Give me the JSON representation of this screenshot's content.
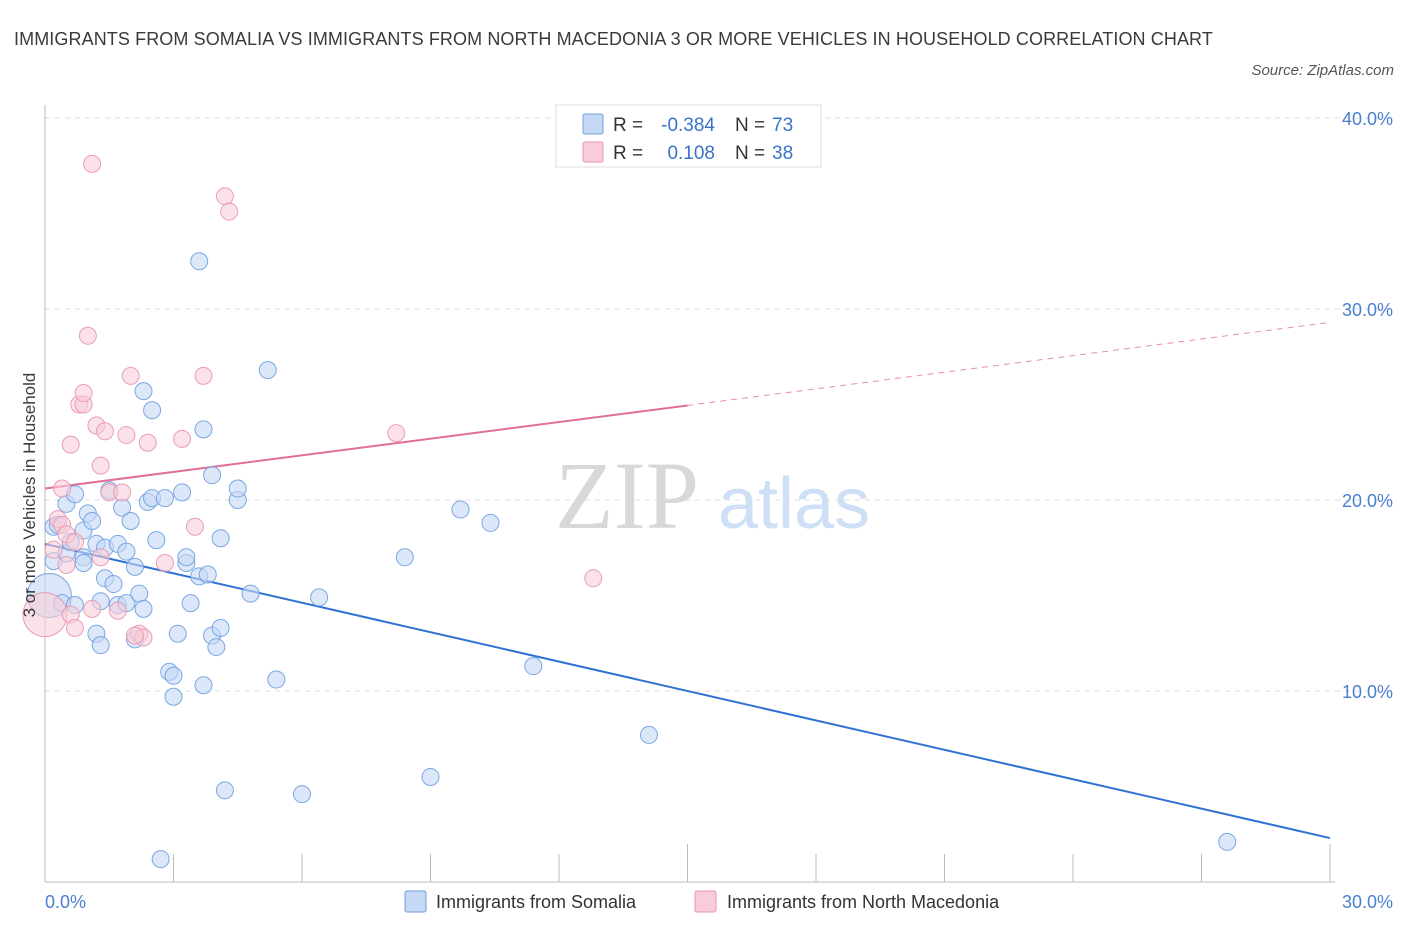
{
  "title": "IMMIGRANTS FROM SOMALIA VS IMMIGRANTS FROM NORTH MACEDONIA 3 OR MORE VEHICLES IN HOUSEHOLD CORRELATION CHART",
  "source": "Source: ZipAtlas.com",
  "watermark": {
    "zip": "ZIP",
    "atlas": "atlas"
  },
  "colors": {
    "somalia_fill": "#c5d9f5",
    "somalia_stroke": "#6e9fe0",
    "somalia_line": "#2f72d4",
    "macedonia_fill": "#f8cdd9",
    "macedonia_stroke": "#e896b0",
    "macedonia_line": "#e07098",
    "grid": "#dddddd",
    "tick": "#4a7fd0"
  },
  "legend": {
    "rows": [
      {
        "r_label": "R =",
        "r_value": "-0.384",
        "n_label": "N =",
        "n_value": "73"
      },
      {
        "r_label": "R =",
        "r_value": "0.108",
        "n_label": "N =",
        "n_value": "38"
      }
    ]
  },
  "chart_data": {
    "type": "scatter",
    "xlabel": "",
    "ylabel": "3 or more Vehicles in Household",
    "xlim": [
      0,
      30
    ],
    "ylim": [
      0,
      40
    ],
    "x_tick_labels": [
      {
        "value": 0,
        "label": "0.0%"
      },
      {
        "value": 30,
        "label": "30.0%"
      }
    ],
    "y_tick_labels": [
      {
        "value": 10,
        "label": "10.0%"
      },
      {
        "value": 20,
        "label": "20.0%"
      },
      {
        "value": 30,
        "label": "30.0%"
      },
      {
        "value": 40,
        "label": "40.0%"
      }
    ],
    "series": [
      {
        "name": "Immigrants from Somalia",
        "r": -0.384,
        "n": 73,
        "trend": {
          "x0": 0,
          "y0": 17.7,
          "x1": 30,
          "y1": 2.3,
          "solid_until": 30
        },
        "points": [
          [
            0.1,
            15.0
          ],
          [
            0.2,
            16.8
          ],
          [
            0.2,
            18.6
          ],
          [
            0.3,
            18.7
          ],
          [
            0.4,
            14.6
          ],
          [
            0.5,
            17.2
          ],
          [
            0.5,
            19.8
          ],
          [
            0.6,
            17.8
          ],
          [
            0.7,
            20.3
          ],
          [
            0.7,
            14.5
          ],
          [
            0.9,
            17.0
          ],
          [
            0.9,
            16.7
          ],
          [
            0.9,
            18.4
          ],
          [
            1.0,
            19.3
          ],
          [
            1.1,
            18.9
          ],
          [
            1.2,
            17.7
          ],
          [
            1.2,
            13.0
          ],
          [
            1.3,
            14.7
          ],
          [
            1.3,
            12.4
          ],
          [
            1.4,
            17.5
          ],
          [
            1.4,
            15.9
          ],
          [
            1.5,
            20.5
          ],
          [
            1.6,
            15.6
          ],
          [
            1.7,
            14.5
          ],
          [
            1.7,
            17.7
          ],
          [
            1.8,
            19.6
          ],
          [
            1.9,
            14.6
          ],
          [
            1.9,
            17.3
          ],
          [
            2.0,
            18.9
          ],
          [
            2.1,
            16.5
          ],
          [
            2.1,
            12.7
          ],
          [
            2.2,
            15.1
          ],
          [
            2.3,
            14.3
          ],
          [
            2.3,
            25.7
          ],
          [
            2.4,
            19.9
          ],
          [
            2.5,
            24.7
          ],
          [
            2.6,
            17.9
          ],
          [
            2.5,
            20.1
          ],
          [
            2.8,
            20.1
          ],
          [
            2.9,
            11.0
          ],
          [
            3.0,
            10.8
          ],
          [
            3.0,
            9.7
          ],
          [
            3.1,
            13.0
          ],
          [
            3.2,
            20.4
          ],
          [
            3.3,
            16.7
          ],
          [
            3.3,
            17.0
          ],
          [
            3.4,
            14.6
          ],
          [
            3.6,
            32.5
          ],
          [
            3.6,
            16.0
          ],
          [
            3.7,
            23.7
          ],
          [
            3.7,
            10.3
          ],
          [
            3.8,
            16.1
          ],
          [
            3.9,
            21.3
          ],
          [
            3.9,
            12.9
          ],
          [
            4.0,
            12.3
          ],
          [
            4.1,
            13.3
          ],
          [
            4.1,
            18.0
          ],
          [
            4.5,
            20.0
          ],
          [
            4.5,
            20.6
          ],
          [
            4.2,
            4.8
          ],
          [
            4.8,
            15.1
          ],
          [
            5.2,
            26.8
          ],
          [
            5.4,
            10.6
          ],
          [
            6.0,
            4.6
          ],
          [
            6.4,
            14.9
          ],
          [
            8.4,
            17.0
          ],
          [
            9.0,
            5.5
          ],
          [
            9.7,
            19.5
          ],
          [
            10.4,
            18.8
          ],
          [
            11.4,
            11.3
          ],
          [
            14.1,
            7.7
          ],
          [
            27.6,
            2.1
          ],
          [
            2.7,
            1.2
          ]
        ]
      },
      {
        "name": "Immigrants from North Macedonia",
        "r": 0.108,
        "n": 38,
        "trend": {
          "x0": 0,
          "y0": 20.6,
          "x1": 30,
          "y1": 29.3,
          "solid_until": 15
        },
        "points": [
          [
            0.0,
            14.0
          ],
          [
            0.2,
            17.4
          ],
          [
            0.3,
            19.0
          ],
          [
            0.4,
            18.7
          ],
          [
            0.4,
            20.6
          ],
          [
            0.5,
            16.6
          ],
          [
            0.5,
            18.2
          ],
          [
            0.6,
            14.0
          ],
          [
            0.6,
            22.9
          ],
          [
            0.7,
            17.8
          ],
          [
            0.7,
            13.3
          ],
          [
            0.8,
            25.0
          ],
          [
            0.9,
            25.0
          ],
          [
            0.9,
            25.6
          ],
          [
            1.0,
            28.6
          ],
          [
            1.1,
            14.3
          ],
          [
            1.2,
            23.9
          ],
          [
            1.3,
            17.0
          ],
          [
            1.3,
            21.8
          ],
          [
            1.4,
            23.6
          ],
          [
            1.5,
            20.4
          ],
          [
            1.7,
            14.2
          ],
          [
            1.8,
            20.4
          ],
          [
            1.9,
            23.4
          ],
          [
            2.0,
            26.5
          ],
          [
            2.2,
            13.0
          ],
          [
            2.3,
            12.8
          ],
          [
            2.4,
            23.0
          ],
          [
            2.8,
            16.7
          ],
          [
            3.2,
            23.2
          ],
          [
            3.5,
            18.6
          ],
          [
            3.7,
            26.5
          ],
          [
            4.2,
            35.9
          ],
          [
            4.3,
            35.1
          ],
          [
            1.1,
            37.6
          ],
          [
            8.2,
            23.5
          ],
          [
            12.8,
            15.9
          ],
          [
            2.1,
            12.9
          ]
        ]
      }
    ],
    "grid": true,
    "legend_position": "top-center"
  }
}
